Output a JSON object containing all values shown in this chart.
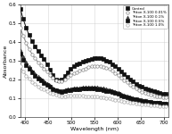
{
  "title": "",
  "xlabel": "Wavelength (nm)",
  "ylabel": "Absorbance",
  "xlim": [
    390,
    710
  ],
  "ylim": [
    0.0,
    0.6
  ],
  "yticks": [
    0.0,
    0.1,
    0.2,
    0.3,
    0.4,
    0.5,
    0.6
  ],
  "xticks": [
    400,
    450,
    500,
    550,
    600,
    650,
    700
  ],
  "legend_entries": [
    "Control",
    "Triton X-100 0.01%",
    "Triton X-100 0.1%",
    "Triton X-100 0.5%",
    "Triton X-100 1.0%"
  ],
  "series_styles": [
    {
      "color": "#111111",
      "marker": "s",
      "linestyle": "-",
      "markersize": 2.2,
      "markerfacecolor": "#111111",
      "linewidth": 0.7
    },
    {
      "color": "#888888",
      "marker": "o",
      "linestyle": "-",
      "markersize": 2.5,
      "markerfacecolor": "white",
      "linewidth": 0.7
    },
    {
      "color": "#444444",
      "marker": "^",
      "linestyle": "--",
      "markersize": 2.2,
      "markerfacecolor": "#444444",
      "linewidth": 0.7
    },
    {
      "color": "#111111",
      "marker": "s",
      "linestyle": "-",
      "markersize": 2.2,
      "markerfacecolor": "#111111",
      "linewidth": 0.7
    },
    {
      "color": "#aaaaaa",
      "marker": "o",
      "linestyle": "-",
      "markersize": 2.5,
      "markerfacecolor": "white",
      "linewidth": 0.7
    }
  ],
  "background_color": "#ffffff",
  "grid_color": "#cccccc",
  "marker_step": 8
}
